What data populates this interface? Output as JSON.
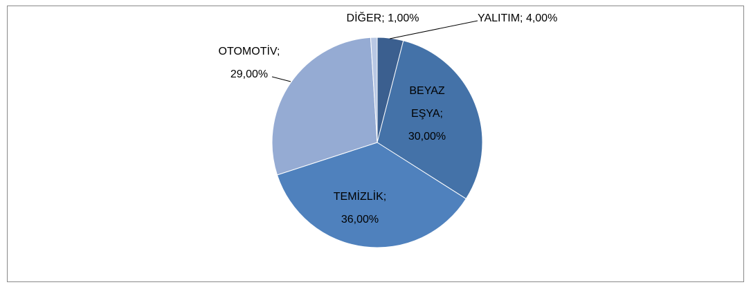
{
  "chart_data": {
    "type": "pie",
    "labels": [
      "YALITIM; 4,00%",
      "BEYAZ EŞYA; 30,00%",
      "TEMİZLİK; 36,00%",
      "OTOMOTİV; 29,00%",
      "DİĞER; 1,00%"
    ],
    "values": [
      4,
      30,
      36,
      29,
      1
    ],
    "colors": [
      "#3b5f8f",
      "#4472a8",
      "#4f81bd",
      "#95abd3",
      "#b9c8e4"
    ]
  }
}
